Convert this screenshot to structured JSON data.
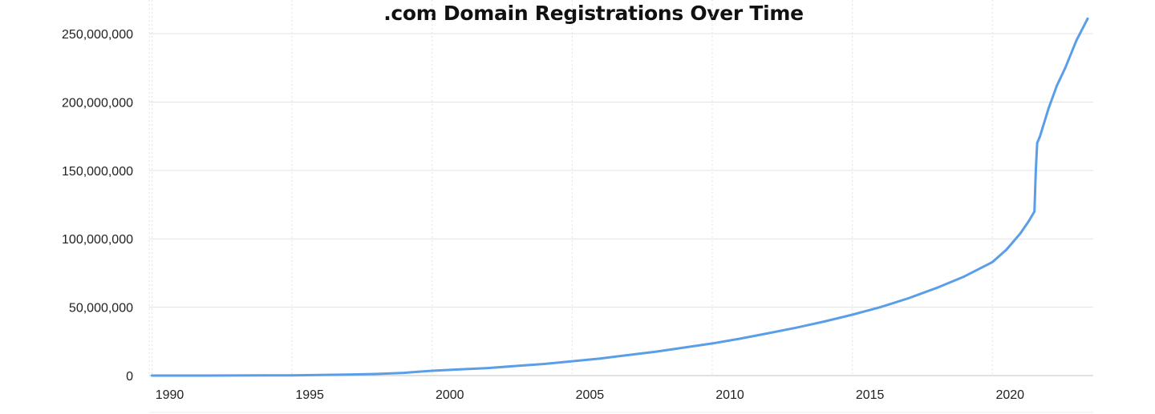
{
  "colors": {
    "line": "#5b9ee8",
    "grid": "#e3e3e3",
    "axis": "#cfcfcf",
    "text": "#222222"
  },
  "chart_data": {
    "type": "line",
    "title": ".com Domain Registrations Over Time",
    "xlabel": "",
    "ylabel": "",
    "xlim": [
      1989.9,
      2023.6
    ],
    "ylim": [
      0,
      260000000
    ],
    "x_ticks": [
      1990,
      1995,
      2000,
      2005,
      2010,
      2015,
      2020
    ],
    "x_tick_labels": [
      "1990",
      "1995",
      "2000",
      "2005",
      "2010",
      "2015",
      "2020"
    ],
    "y_ticks": [
      0,
      50000000,
      100000000,
      150000000,
      200000000,
      250000000
    ],
    "y_tick_labels": [
      "0",
      "50,000,000",
      "100,000,000",
      "150,000,000",
      "200,000,000",
      "250,000,000"
    ],
    "grid": {
      "x": "dashed",
      "y": "solid"
    },
    "legend": "none",
    "series": [
      {
        "x": [
          1990.0,
          1992.0,
          1994.0,
          1995.0,
          1996.0,
          1997.0,
          1998.0,
          1999.0,
          1999.5,
          2000.0,
          2001.0,
          2002.0,
          2003.0,
          2004.0,
          2005.0,
          2006.0,
          2007.0,
          2008.0,
          2009.0,
          2010.0,
          2011.0,
          2012.0,
          2013.0,
          2014.0,
          2015.0,
          2016.0,
          2017.0,
          2018.0,
          2019.0,
          2020.0,
          2020.5,
          2021.0,
          2021.3,
          2021.5,
          2021.55,
          2021.6,
          2021.7,
          2022.0,
          2022.3,
          2022.6,
          2023.0,
          2023.4
        ],
        "y": [
          0,
          0,
          100000,
          200000,
          400000,
          700000,
          1200000,
          2000000,
          2800000,
          3500000,
          4500000,
          5500000,
          7000000,
          8500000,
          10500000,
          12500000,
          15000000,
          17500000,
          20500000,
          23500000,
          27000000,
          31000000,
          35000000,
          39500000,
          44500000,
          50000000,
          56500000,
          64000000,
          72500000,
          83000000,
          92000000,
          104000000,
          113000000,
          120000000,
          150000000,
          170000000,
          175000000,
          195000000,
          212000000,
          225000000,
          245000000,
          261000000
        ]
      }
    ]
  }
}
